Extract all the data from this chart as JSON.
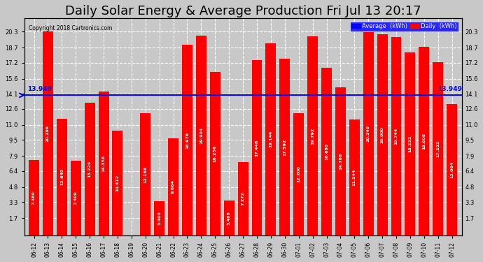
{
  "title": "Daily Solar Energy & Average Production Fri Jul 13 20:17",
  "copyright": "Copyright 2018 Cartronics.com",
  "categories": [
    "06-12",
    "06-13",
    "06-14",
    "06-15",
    "06-16",
    "06-17",
    "06-18",
    "06-19",
    "06-20",
    "06-21",
    "06-22",
    "06-23",
    "06-24",
    "06-25",
    "06-26",
    "06-27",
    "06-28",
    "06-29",
    "06-30",
    "07-01",
    "07-02",
    "07-03",
    "07-04",
    "07-05",
    "07-06",
    "07-07",
    "07-08",
    "07-09",
    "07-10",
    "07-11",
    "07-12"
  ],
  "values": [
    7.48,
    20.296,
    11.64,
    7.4,
    13.224,
    14.356,
    10.412,
    0.0,
    12.168,
    3.4,
    9.664,
    18.976,
    19.904,
    16.256,
    3.488,
    7.272,
    17.448,
    19.144,
    17.592,
    12.2,
    19.792,
    16.68,
    14.768,
    11.544,
    20.24,
    20.0,
    19.744,
    18.232,
    18.808,
    17.232,
    13.064
  ],
  "average": 13.949,
  "bar_color": "#ff0000",
  "average_color": "#0000ff",
  "background_color": "#c8c8c8",
  "plot_bg_color": "#c8c8c8",
  "grid_color": "#ffffff",
  "ylim": [
    0,
    21.6
  ],
  "yticks": [
    1.7,
    3.3,
    4.8,
    6.4,
    7.9,
    9.5,
    11.0,
    12.6,
    14.1,
    15.6,
    17.2,
    18.7,
    20.3
  ],
  "title_fontsize": 13,
  "label_fontsize": 6,
  "avg_label": "13.949",
  "legend_avg_text": "Average  (kWh)",
  "legend_daily_text": "Daily  (kWh)"
}
